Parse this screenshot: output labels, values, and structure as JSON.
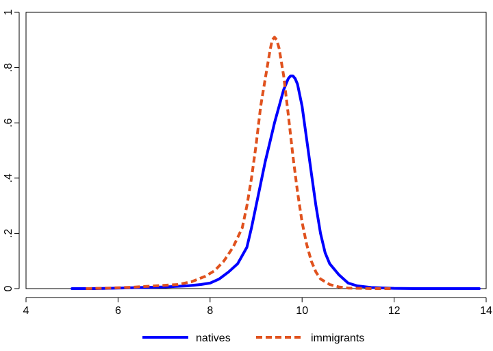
{
  "chart_data": {
    "type": "line",
    "title": "",
    "xlabel": "",
    "ylabel": "",
    "xlim": [
      4,
      14
    ],
    "ylim": [
      0,
      1
    ],
    "x_ticks": [
      4,
      6,
      8,
      10,
      12,
      14
    ],
    "y_ticks": [
      0,
      0.2,
      0.4,
      0.6,
      0.8,
      1
    ],
    "x_tick_labels": [
      "4",
      "6",
      "8",
      "10",
      "12",
      "14"
    ],
    "y_tick_labels": [
      "0",
      ".2",
      ".4",
      ".6",
      ".8",
      "1"
    ],
    "grid": false,
    "legend_position": "bottom",
    "series": [
      {
        "name": "natives",
        "color": "#0000ff",
        "line_style": "solid",
        "x": [
          5.0,
          5.5,
          6.0,
          6.5,
          7.0,
          7.5,
          7.8,
          8.0,
          8.2,
          8.4,
          8.6,
          8.8,
          8.9,
          9.0,
          9.1,
          9.2,
          9.3,
          9.4,
          9.5,
          9.6,
          9.7,
          9.75,
          9.8,
          9.85,
          9.9,
          10.0,
          10.1,
          10.2,
          10.3,
          10.4,
          10.5,
          10.6,
          10.8,
          11.0,
          11.2,
          11.5,
          12.0,
          12.5,
          13.0,
          13.5,
          13.85
        ],
        "y": [
          0.0,
          0.0,
          0.002,
          0.004,
          0.006,
          0.01,
          0.015,
          0.02,
          0.035,
          0.06,
          0.09,
          0.15,
          0.22,
          0.3,
          0.38,
          0.46,
          0.53,
          0.6,
          0.66,
          0.72,
          0.76,
          0.77,
          0.77,
          0.76,
          0.74,
          0.66,
          0.54,
          0.42,
          0.3,
          0.2,
          0.13,
          0.09,
          0.05,
          0.02,
          0.01,
          0.004,
          0.001,
          0.0,
          0.0,
          0.0,
          0.0
        ]
      },
      {
        "name": "immigrants",
        "color": "#e0521e",
        "line_style": "dashed",
        "x": [
          5.3,
          5.8,
          6.3,
          6.8,
          7.3,
          7.6,
          7.9,
          8.1,
          8.3,
          8.5,
          8.7,
          8.8,
          8.9,
          9.0,
          9.1,
          9.2,
          9.3,
          9.35,
          9.4,
          9.45,
          9.5,
          9.6,
          9.7,
          9.8,
          9.9,
          10.0,
          10.1,
          10.2,
          10.3,
          10.4,
          10.6,
          10.8,
          11.0,
          11.5,
          12.0
        ],
        "y": [
          0.0,
          0.002,
          0.005,
          0.01,
          0.015,
          0.025,
          0.045,
          0.065,
          0.1,
          0.15,
          0.22,
          0.3,
          0.4,
          0.52,
          0.66,
          0.76,
          0.86,
          0.9,
          0.91,
          0.9,
          0.87,
          0.77,
          0.63,
          0.48,
          0.35,
          0.24,
          0.16,
          0.1,
          0.06,
          0.035,
          0.015,
          0.006,
          0.002,
          0.0,
          0.0
        ]
      }
    ]
  }
}
